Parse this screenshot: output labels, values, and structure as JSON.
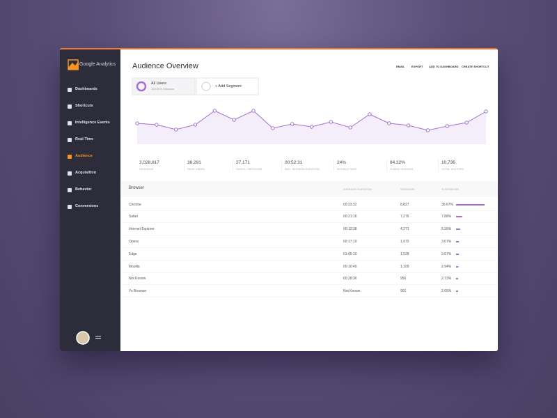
{
  "sidebar": {
    "logo": "Google Analytics",
    "nav": [
      "Dashboards",
      "Shortcuts",
      "Intelligence Events",
      "Real-Time",
      "Audience",
      "Acquisition",
      "Behavior",
      "Conversions"
    ],
    "active": 4
  },
  "header": {
    "title": "Audience Overview",
    "actions": [
      "EMAIL",
      "EXPORT",
      "ADD TO DASHBOARD",
      "CREATE SHORTCUT"
    ]
  },
  "segments": [
    {
      "name": "All Users",
      "detail": "100.00% Sessions"
    },
    {
      "name": "+ Add Segment"
    }
  ],
  "chart_data": {
    "type": "line",
    "color": "#a46fd0",
    "values": [
      25,
      23,
      16,
      23,
      43,
      30,
      43,
      18,
      24,
      20,
      27,
      19,
      38,
      25,
      22,
      15,
      21,
      26,
      42
    ]
  },
  "stats": [
    {
      "value": "3,028,817",
      "label": "SESSIONS"
    },
    {
      "value": "36,291",
      "label": "PAGE VIEWS"
    },
    {
      "value": "27,171",
      "label": "PAGES / SESSIONS"
    },
    {
      "value": "00:52:31",
      "label": "AVG. SESSION DURATION"
    },
    {
      "value": "24%",
      "label": "BOUNCE RATE"
    },
    {
      "value": "84.32%",
      "label": "% NEW SESSION"
    },
    {
      "value": "10,736",
      "label": "TOTAL VISITORS"
    }
  ],
  "table": {
    "columns": [
      "Browser",
      "AVERAGE DURATION",
      "SESSIONS",
      "% SESSIONS"
    ],
    "rows": [
      [
        "Chrome",
        "00:23:32",
        "8,827",
        {
          "value": 36.67,
          "label": "36.67%"
        }
      ],
      [
        "Safari",
        "00:21:16",
        "7,276",
        {
          "value": 7.88,
          "label": "7.88%"
        }
      ],
      [
        "Internet Explorer",
        "00:12:38",
        "4,271",
        {
          "value": 5.28,
          "label": "5.28%"
        }
      ],
      [
        "Opera",
        "00:17:19",
        "1,972",
        {
          "value": 3.67,
          "label": "3.67%"
        }
      ],
      [
        "Edge",
        "01:05:10",
        "1,528",
        {
          "value": 3.57,
          "label": "3.57%"
        }
      ],
      [
        "Mozilla",
        "00:10:49",
        "1,109",
        {
          "value": 2.94,
          "label": "2.94%"
        }
      ],
      [
        "Not Known",
        "00:28:36",
        "956",
        {
          "value": 2.73,
          "label": "2.73%"
        }
      ],
      [
        "Yo Browser",
        "Not Known",
        "901",
        {
          "value": 2.65,
          "label": "2.65%"
        }
      ]
    ]
  }
}
